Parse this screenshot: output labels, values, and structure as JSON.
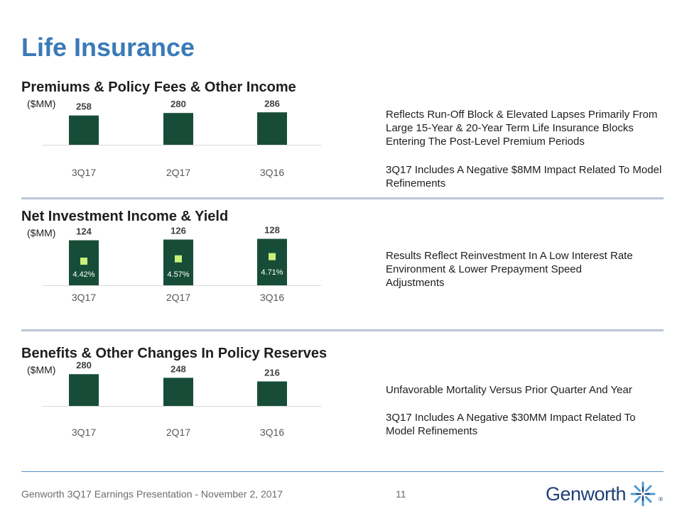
{
  "page": {
    "title": "Life Insurance",
    "footer": "Genworth 3Q17 Earnings Presentation - November 2, 2017",
    "page_number": "11",
    "logo_text": "Genworth",
    "logo_reg": "®"
  },
  "colors": {
    "title": "#3a7ab8",
    "bar": "#174d38",
    "yield_marker": "#c7f27a",
    "divider": "#bcc6d6",
    "footer_line": "#5a8ec4",
    "logo": "#1f3f76"
  },
  "sections": [
    {
      "title": "Premiums & Policy Fees & Other Income",
      "unit": "($MM)",
      "notes": [
        "Reflects Run-Off Block & Elevated Lapses Primarily From Large 15-Year & 20-Year Term Life Insurance Blocks Entering The Post-Level Premium Periods",
        "3Q17 Includes A Negative $8MM Impact Related To Model Refinements"
      ]
    },
    {
      "title": "Net Investment Income & Yield",
      "unit": "($MM)",
      "notes": [
        "Results Reflect Reinvestment In A Low Interest Rate Environment & Lower Prepayment Speed Adjustments"
      ]
    },
    {
      "title": "Benefits & Other Changes In Policy Reserves",
      "unit": "($MM)",
      "notes": [
        "Unfavorable Mortality Versus Prior Quarter And Year",
        "3Q17 Includes A Negative $30MM Impact Related To Model Refinements"
      ]
    }
  ],
  "chart_data": [
    {
      "type": "bar",
      "title": "Premiums & Policy Fees & Other Income",
      "ylabel": "($MM)",
      "categories": [
        "3Q17",
        "2Q17",
        "3Q16"
      ],
      "values": [
        258,
        280,
        286
      ],
      "ylim": [
        0,
        1000
      ]
    },
    {
      "type": "bar",
      "title": "Net Investment Income & Yield",
      "ylabel": "($MM)",
      "categories": [
        "3Q17",
        "2Q17",
        "3Q16"
      ],
      "values": [
        124,
        126,
        128
      ],
      "ylim": [
        0,
        215
      ],
      "series": [
        {
          "name": "Net Investment Income",
          "values": [
            124,
            126,
            128
          ]
        },
        {
          "name": "Yield",
          "values": [
            "4.42%",
            "4.57%",
            "4.71%"
          ],
          "numeric": [
            4.42,
            4.57,
            4.71
          ]
        }
      ]
    },
    {
      "type": "bar",
      "title": "Benefits & Other Changes In Policy Reserves",
      "ylabel": "($MM)",
      "categories": [
        "3Q17",
        "2Q17",
        "3Q16"
      ],
      "values": [
        280,
        248,
        216
      ],
      "ylim": [
        0,
        1000
      ]
    }
  ]
}
